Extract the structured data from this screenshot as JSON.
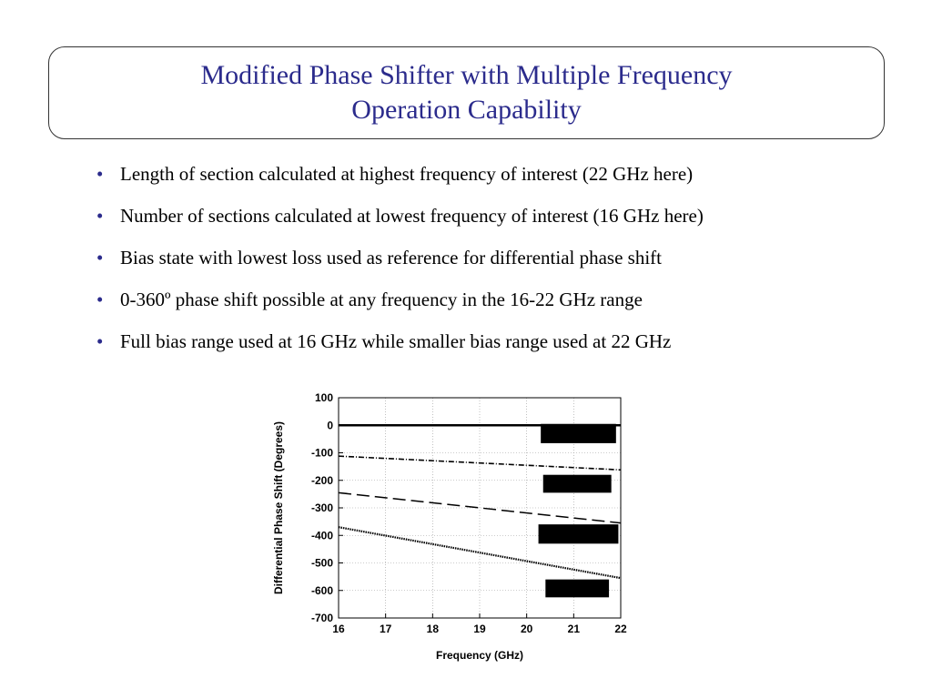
{
  "slide": {
    "title_line1": "Modified Phase Shifter with Multiple Frequency",
    "title_line2": "Operation Capability",
    "bullets": [
      "Length of section calculated at highest frequency of interest (22 GHz here)",
      "Number of sections calculated at lowest frequency of interest (16 GHz here)",
      "Bias state with lowest loss used as reference for differential phase shift",
      "0-360º phase shift possible at any frequency in the 16-22 GHz range",
      "Full bias range used at 16 GHz while smaller bias range used at 22 GHz"
    ],
    "bullet_glyph": "•",
    "colors": {
      "title": "#2b2b8c",
      "bullet": "#2b2b8c"
    }
  },
  "chart_data": {
    "type": "line",
    "xlabel": "Frequency (GHz)",
    "ylabel": "Differential Phase Shift (Degrees)",
    "xlim": [
      16,
      22
    ],
    "ylim": [
      -700,
      100
    ],
    "xticks": [
      16,
      17,
      18,
      19,
      20,
      21,
      22
    ],
    "yticks": [
      100,
      0,
      -100,
      -200,
      -300,
      -400,
      -500,
      -600,
      -700
    ],
    "grid": true,
    "series": [
      {
        "style": "solid",
        "x": [
          16,
          22
        ],
        "y": [
          0,
          0
        ]
      },
      {
        "style": "dash-dot",
        "x": [
          16,
          22
        ],
        "y": [
          -112,
          -162
        ]
      },
      {
        "style": "long-dash",
        "x": [
          16,
          22
        ],
        "y": [
          -245,
          -355
        ]
      },
      {
        "style": "dotted",
        "x": [
          16,
          22
        ],
        "y": [
          -370,
          -555
        ]
      }
    ],
    "label_blocks": [
      {
        "x": [
          20.3,
          21.9
        ],
        "y": [
          -65,
          5
        ]
      },
      {
        "x": [
          20.35,
          21.8
        ],
        "y": [
          -245,
          -180
        ]
      },
      {
        "x": [
          20.25,
          21.95
        ],
        "y": [
          -430,
          -360
        ]
      },
      {
        "x": [
          20.4,
          21.75
        ],
        "y": [
          -625,
          -560
        ]
      }
    ]
  }
}
